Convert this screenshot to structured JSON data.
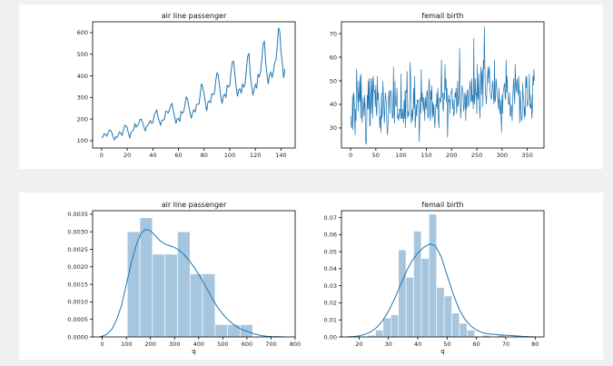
{
  "colors": {
    "line": "#1f77b4",
    "bar_fill": "#a6c6e0",
    "bar_stroke": "#ffffff",
    "kde": "#1f77b4"
  },
  "chart_data": [
    {
      "id": "air-line",
      "type": "line",
      "title": "air line passenger",
      "xlabel": "",
      "ylabel": "",
      "xlim": [
        -7,
        151
      ],
      "ylim": [
        66,
        650
      ],
      "xticks": [
        0,
        20,
        40,
        60,
        80,
        100,
        120,
        140
      ],
      "yticks": [
        100,
        200,
        300,
        400,
        500,
        600
      ],
      "x_start": 0,
      "values": [
        112,
        118,
        132,
        129,
        121,
        135,
        148,
        148,
        136,
        119,
        104,
        118,
        115,
        126,
        141,
        135,
        125,
        149,
        170,
        170,
        158,
        133,
        114,
        140,
        145,
        150,
        178,
        163,
        172,
        178,
        199,
        199,
        184,
        162,
        146,
        166,
        171,
        180,
        193,
        181,
        183,
        218,
        230,
        242,
        209,
        191,
        172,
        194,
        196,
        196,
        236,
        235,
        229,
        243,
        264,
        272,
        237,
        211,
        180,
        201,
        204,
        188,
        235,
        227,
        234,
        264,
        302,
        293,
        259,
        229,
        203,
        229,
        242,
        233,
        267,
        269,
        270,
        315,
        364,
        347,
        312,
        274,
        237,
        278,
        284,
        277,
        317,
        313,
        318,
        374,
        413,
        405,
        355,
        306,
        271,
        306,
        315,
        301,
        356,
        348,
        355,
        422,
        465,
        467,
        404,
        347,
        305,
        336,
        340,
        318,
        362,
        348,
        363,
        435,
        491,
        505,
        404,
        359,
        310,
        337,
        360,
        342,
        406,
        396,
        420,
        472,
        548,
        559,
        463,
        407,
        362,
        405,
        417,
        391,
        419,
        461,
        472,
        535,
        622,
        606,
        508,
        461,
        390,
        432
      ]
    },
    {
      "id": "femail-birth",
      "type": "line",
      "title": "femail birth",
      "xlabel": "",
      "ylabel": "",
      "xlim": [
        -18,
        383
      ],
      "ylim": [
        21.5,
        75
      ],
      "xticks": [
        0,
        50,
        100,
        150,
        200,
        250,
        300,
        350
      ],
      "yticks": [
        30,
        40,
        50,
        60,
        70
      ],
      "x_start": 0,
      "values": [
        35,
        32,
        30,
        31,
        44,
        29,
        45,
        43,
        38,
        27,
        38,
        33,
        55,
        47,
        45,
        37,
        50,
        43,
        41,
        52,
        34,
        53,
        39,
        32,
        37,
        43,
        39,
        35,
        44,
        38,
        24,
        23,
        31,
        44,
        38,
        50,
        38,
        51,
        31,
        31,
        51,
        36,
        45,
        51,
        34,
        52,
        47,
        45,
        46,
        39,
        48,
        37,
        35,
        52,
        42,
        45,
        39,
        37,
        30,
        35,
        28,
        45,
        34,
        36,
        50,
        44,
        39,
        32,
        39,
        45,
        43,
        39,
        31,
        27,
        30,
        42,
        46,
        41,
        36,
        45,
        46,
        43,
        38,
        34,
        35,
        56,
        36,
        32,
        50,
        41,
        39,
        41,
        47,
        34,
        36,
        33,
        35,
        38,
        38,
        34,
        53,
        34,
        34,
        38,
        35,
        32,
        42,
        34,
        46,
        30,
        46,
        45,
        54,
        34,
        37,
        35,
        40,
        42,
        58,
        51,
        32,
        35,
        38,
        33,
        39,
        47,
        38,
        52,
        30,
        34,
        40,
        35,
        42,
        41,
        42,
        38,
        24,
        34,
        43,
        36,
        55,
        41,
        45,
        41,
        37,
        43,
        39,
        33,
        43,
        40,
        38,
        45,
        46,
        34,
        35,
        48,
        51,
        36,
        33,
        46,
        42,
        48,
        34,
        41,
        35,
        40,
        34,
        30,
        36,
        40,
        39,
        45,
        38,
        47,
        33,
        30,
        42,
        43,
        41,
        41,
        59,
        43,
        45,
        38,
        37,
        45,
        42,
        57,
        46,
        51,
        41,
        47,
        26,
        35,
        44,
        41,
        42,
        36,
        45,
        45,
        45,
        47,
        38,
        42,
        35,
        36,
        39,
        45,
        43,
        47,
        36,
        41,
        50,
        39,
        41,
        46,
        64,
        45,
        34,
        38,
        44,
        48,
        46,
        44,
        37,
        39,
        44,
        45,
        33,
        44,
        38,
        46,
        46,
        40,
        39,
        44,
        48,
        50,
        41,
        42,
        51,
        41,
        44,
        38,
        68,
        40,
        42,
        51,
        44,
        45,
        36,
        57,
        44,
        42,
        53,
        42,
        34,
        40,
        56,
        44,
        53,
        55,
        39,
        59,
        55,
        73,
        55,
        44,
        43,
        40,
        47,
        51,
        56,
        49,
        54,
        56,
        47,
        44,
        43,
        42,
        45,
        50,
        48,
        43,
        40,
        59,
        41,
        42,
        51,
        49,
        45,
        43,
        42,
        38,
        47,
        38,
        36,
        42,
        35,
        28,
        44,
        36,
        45,
        46,
        48,
        49,
        43,
        42,
        59,
        45,
        52,
        46,
        42,
        40,
        40,
        45,
        35,
        35,
        40,
        39,
        33,
        42,
        47,
        51,
        44,
        40,
        57,
        49,
        45,
        49,
        51,
        46,
        44,
        52,
        45,
        32,
        46,
        41,
        34,
        33,
        36,
        49,
        43,
        43,
        34,
        39,
        35,
        52,
        47,
        52,
        39,
        40,
        42,
        42,
        53,
        39,
        40,
        38,
        44,
        34,
        37,
        52,
        48,
        55,
        50
      ]
    },
    {
      "id": "air-dist",
      "type": "bar",
      "title": "air line passenger",
      "xlabel": "q",
      "ylabel": "",
      "xlim": [
        -40,
        800
      ],
      "ylim": [
        0,
        0.0036
      ],
      "xticks": [
        0,
        100,
        200,
        300,
        400,
        500,
        600,
        700,
        800
      ],
      "yticks": [
        0.0,
        0.0005,
        0.001,
        0.0015,
        0.002,
        0.0025,
        0.003,
        0.0035
      ],
      "ytick_labels": [
        "0.0000",
        "0.0005",
        "0.0010",
        "0.0015",
        "0.0020",
        "0.0025",
        "0.0030",
        "0.0035"
      ],
      "bin_edges": [
        104,
        156,
        208,
        260,
        312,
        364,
        416,
        468,
        520,
        572,
        624
      ],
      "values": [
        0.003,
        0.0034,
        0.00236,
        0.00236,
        0.003,
        0.0018,
        0.0018,
        0.00035,
        0.00035,
        0.00035
      ],
      "kde": {
        "x": [
          -10,
          0,
          20,
          40,
          60,
          80,
          100,
          120,
          140,
          160,
          180,
          200,
          220,
          240,
          260,
          280,
          300,
          320,
          340,
          360,
          380,
          400,
          420,
          440,
          460,
          480,
          500,
          520,
          540,
          560,
          580,
          600,
          620,
          640,
          660,
          680,
          700,
          720,
          740,
          760
        ],
        "y": [
          1e-05,
          2e-05,
          8e-05,
          0.00022,
          0.0005,
          0.0009,
          0.0015,
          0.0021,
          0.0026,
          0.00295,
          0.00307,
          0.00303,
          0.00289,
          0.00274,
          0.00265,
          0.0026,
          0.00255,
          0.00247,
          0.00234,
          0.00218,
          0.002,
          0.00178,
          0.00155,
          0.0013,
          0.00105,
          0.00083,
          0.00065,
          0.0005,
          0.00038,
          0.00028,
          0.00021,
          0.00016,
          0.00011,
          7e-05,
          4e-05,
          2e-05,
          1e-05,
          5e-06,
          2e-06,
          0.0
        ]
      }
    },
    {
      "id": "birth-dist",
      "type": "bar",
      "title": "femail birth",
      "xlabel": "q",
      "ylabel": "",
      "xlim": [
        14,
        83
      ],
      "ylim": [
        0,
        0.074
      ],
      "xticks": [
        20,
        30,
        40,
        50,
        60,
        70,
        80
      ],
      "yticks": [
        0.0,
        0.01,
        0.02,
        0.03,
        0.04,
        0.05,
        0.06,
        0.07
      ],
      "ytick_labels": [
        "0.00",
        "0.01",
        "0.02",
        "0.03",
        "0.04",
        "0.05",
        "0.06",
        "0.07"
      ],
      "bin_edges": [
        23,
        25.6,
        28.2,
        30.8,
        33.4,
        36.0,
        38.6,
        41.2,
        43.8,
        46.4,
        49.0,
        51.6,
        54.2,
        56.8,
        59.4,
        62.0,
        64.6,
        67.2,
        69.8,
        72.4,
        75.0
      ],
      "values": [
        0.001,
        0.004,
        0.011,
        0.013,
        0.051,
        0.035,
        0.062,
        0.046,
        0.072,
        0.029,
        0.024,
        0.014,
        0.008,
        0.004,
        0.0,
        0.001,
        0.0,
        0.001,
        0.0,
        0.001
      ],
      "kde": {
        "x": [
          16,
          18,
          20,
          22,
          24,
          26,
          28,
          30,
          32,
          34,
          36,
          38,
          40,
          42,
          44,
          46,
          48,
          50,
          52,
          54,
          56,
          58,
          60,
          62,
          64,
          66,
          68,
          70,
          72,
          74,
          76,
          78,
          80
        ],
        "y": [
          0.0,
          0.0002,
          0.0006,
          0.0015,
          0.003,
          0.0055,
          0.0095,
          0.015,
          0.022,
          0.03,
          0.038,
          0.0445,
          0.049,
          0.0525,
          0.0545,
          0.0535,
          0.047,
          0.036,
          0.0255,
          0.0165,
          0.0105,
          0.0065,
          0.004,
          0.0025,
          0.0018,
          0.0015,
          0.0012,
          0.001,
          0.0008,
          0.0005,
          0.0003,
          0.0001,
          0.0
        ]
      }
    }
  ]
}
